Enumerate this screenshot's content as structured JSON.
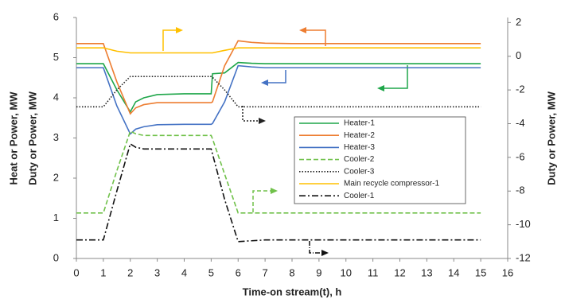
{
  "chart_data": {
    "type": "line",
    "xlabel": "Time-on stream(t), h",
    "ylabel": "Heat or Power, MW",
    "ylabel_secondary": "Duty or Power, MW",
    "y2label": "Duty or Power, MW",
    "x": [
      0,
      1,
      1.5,
      2,
      2.2,
      2.5,
      3,
      4,
      5,
      5.05,
      5.5,
      6,
      6.5,
      7,
      8,
      9,
      10,
      11,
      12,
      13,
      14,
      15
    ],
    "xlim": [
      0,
      16
    ],
    "xticks": [
      0,
      1,
      2,
      3,
      4,
      5,
      6,
      7,
      8,
      9,
      10,
      11,
      12,
      13,
      14,
      15,
      16
    ],
    "ylim": [
      0,
      6
    ],
    "yticks": [
      0,
      1,
      2,
      3,
      4,
      5,
      6
    ],
    "y2lim": [
      -12,
      2.3
    ],
    "y2ticks": [
      -12,
      -10,
      -8,
      -6,
      -4,
      -2,
      0,
      2
    ],
    "series": [
      {
        "name": "Heater-1",
        "color": "#1fa64a",
        "style": "solid",
        "axis": "y",
        "values": [
          4.85,
          4.85,
          4.2,
          3.65,
          3.9,
          4.0,
          4.08,
          4.1,
          4.1,
          4.6,
          4.62,
          4.88,
          4.86,
          4.85,
          4.85,
          4.85,
          4.85,
          4.85,
          4.85,
          4.85,
          4.85,
          4.85
        ]
      },
      {
        "name": "Heater-2",
        "color": "#ed7d31",
        "style": "solid",
        "axis": "y",
        "values": [
          5.35,
          5.35,
          4.4,
          3.6,
          3.75,
          3.83,
          3.88,
          3.88,
          3.88,
          3.9,
          4.8,
          5.42,
          5.38,
          5.36,
          5.35,
          5.35,
          5.35,
          5.35,
          5.35,
          5.35,
          5.35,
          5.35
        ]
      },
      {
        "name": "Heater-3",
        "color": "#4472c4",
        "style": "solid",
        "axis": "y",
        "values": [
          4.75,
          4.75,
          3.8,
          3.1,
          3.22,
          3.28,
          3.33,
          3.34,
          3.34,
          3.36,
          3.9,
          4.8,
          4.77,
          4.75,
          4.75,
          4.75,
          4.75,
          4.75,
          4.75,
          4.75,
          4.75,
          4.75
        ]
      },
      {
        "name": "Cooler-2",
        "color": "#70c14a",
        "style": "dashed",
        "axis": "y2",
        "values": [
          -9.3,
          -9.3,
          -6.8,
          -4.45,
          -4.6,
          -4.7,
          -4.7,
          -4.7,
          -4.7,
          -4.9,
          -7,
          -9.3,
          -9.3,
          -9.3,
          -9.3,
          -9.3,
          -9.3,
          -9.3,
          -9.3,
          -9.3,
          -9.3,
          -9.3
        ]
      },
      {
        "name": "Cooler-3",
        "color": "#222222",
        "style": "dotted",
        "axis": "y2",
        "values": [
          -3,
          -3,
          -2,
          -1.2,
          -1.2,
          -1.2,
          -1.2,
          -1.2,
          -1.2,
          -1.25,
          -2,
          -3,
          -3,
          -3,
          -3,
          -3,
          -3,
          -3,
          -3,
          -3,
          -3,
          -3
        ]
      },
      {
        "name": "Main recycle compressor-1",
        "color": "#ffc000",
        "style": "solid",
        "axis": "y2",
        "values": [
          0.5,
          0.5,
          0.3,
          0.2,
          0.2,
          0.2,
          0.2,
          0.2,
          0.2,
          0.2,
          0.35,
          0.5,
          0.5,
          0.5,
          0.5,
          0.5,
          0.5,
          0.5,
          0.5,
          0.5,
          0.5,
          0.5
        ]
      },
      {
        "name": "Cooler-1",
        "color": "#111111",
        "style": "dashdot",
        "axis": "y2",
        "values": [
          -10.9,
          -10.9,
          -8,
          -5.2,
          -5.4,
          -5.5,
          -5.5,
          -5.5,
          -5.5,
          -5.8,
          -8.5,
          -11,
          -10.95,
          -10.9,
          -10.9,
          -10.9,
          -10.9,
          -10.9,
          -10.9,
          -10.9,
          -10.9,
          -10.9
        ]
      }
    ]
  }
}
